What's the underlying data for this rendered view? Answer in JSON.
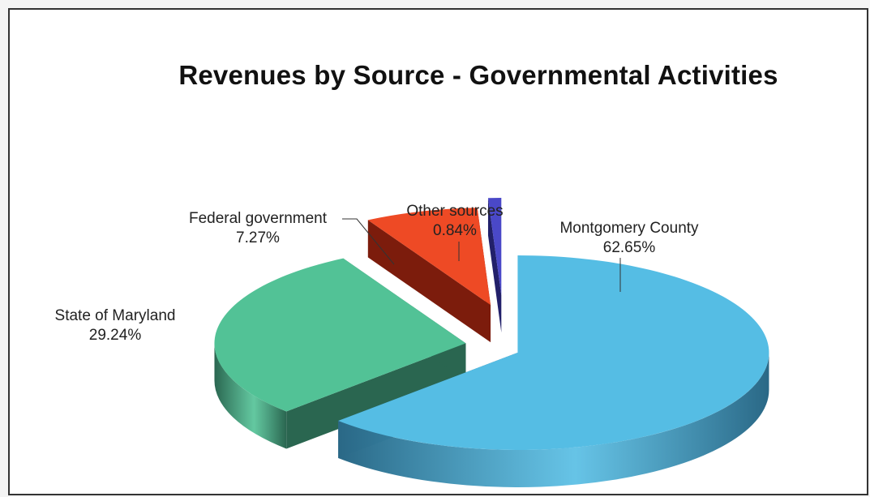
{
  "chart_data": {
    "type": "pie",
    "style": "3d-exploded",
    "title": "Revenues by Source - Governmental Activities",
    "slices": [
      {
        "name": "Montgomery County",
        "label": "62.65%",
        "value": 62.65,
        "color": "#55bde4",
        "side_color": "#2a6886"
      },
      {
        "name": "State of Maryland",
        "label": "29.24%",
        "value": 29.24,
        "color": "#52c296",
        "side_color": "#2a6650"
      },
      {
        "name": "Federal government",
        "label": "7.27%",
        "value": 7.27,
        "color": "#ee4a25",
        "side_color": "#7c1c0c"
      },
      {
        "name": "Other sources",
        "label": "0.84%",
        "value": 0.84,
        "color": "#4a48c8",
        "side_color": "#22206a"
      }
    ],
    "legend": "none"
  }
}
